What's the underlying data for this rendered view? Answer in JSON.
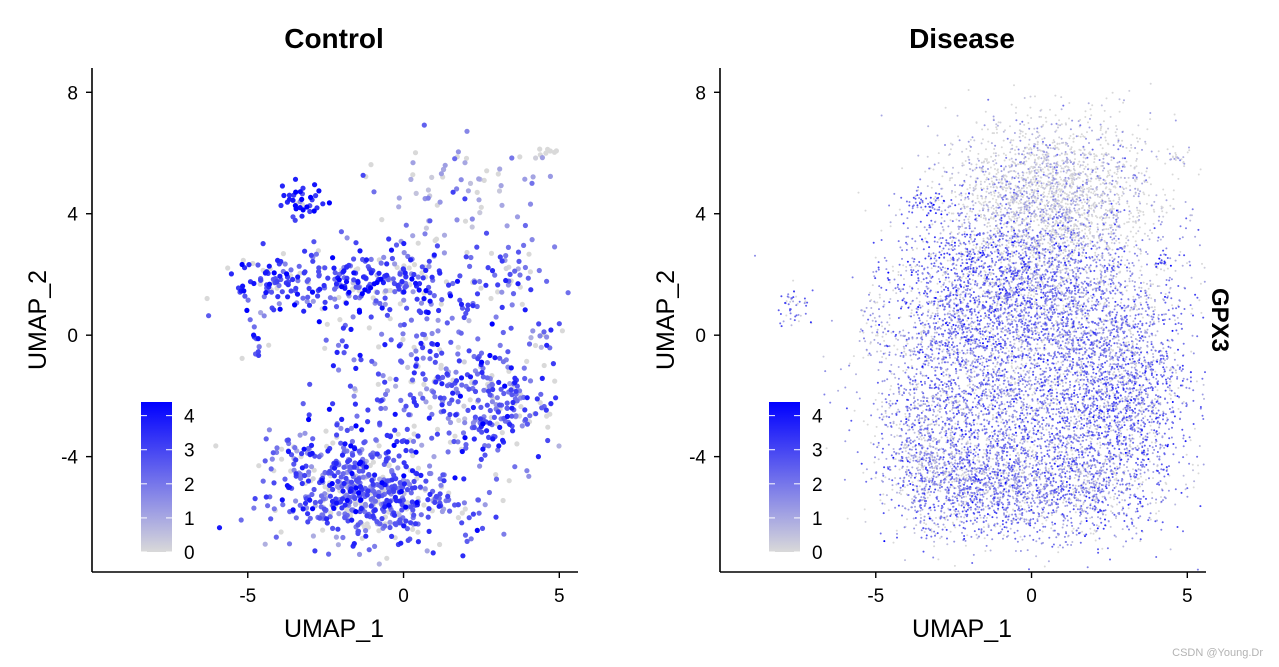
{
  "feature": "GPX3",
  "watermark": "CSDN @Young.Dr",
  "colors": {
    "low": "#d9d9d9",
    "high": "#0000ff",
    "axis": "#000000"
  },
  "chart_data": [
    {
      "type": "scatter",
      "title": "Control",
      "xlabel": "UMAP_1",
      "ylabel": "UMAP_2",
      "xlim": [
        -10,
        5.6
      ],
      "ylim": [
        -7.8,
        8.8
      ],
      "xticks": [
        -5,
        0,
        5
      ],
      "yticks": [
        -4,
        0,
        4,
        8
      ],
      "legend": {
        "title": "",
        "ticks": [
          0,
          1,
          2,
          3,
          4
        ],
        "range": [
          0,
          4.4
        ],
        "placement": "bottom-left"
      },
      "regions": [
        {
          "cx": -1.5,
          "cy": -4.8,
          "sx": 1.3,
          "sy": 1.0,
          "n": 380,
          "mean": 2.6
        },
        {
          "cx": -0.5,
          "cy": -5.6,
          "sx": 1.8,
          "sy": 0.6,
          "n": 260,
          "mean": 2.4
        },
        {
          "cx": 2.8,
          "cy": -2.4,
          "sx": 1.1,
          "sy": 0.9,
          "n": 200,
          "mean": 2.6
        },
        {
          "cx": -1.2,
          "cy": 1.9,
          "sx": 1.7,
          "sy": 0.6,
          "n": 220,
          "mean": 3.0
        },
        {
          "cx": -4.4,
          "cy": 1.7,
          "sx": 0.6,
          "sy": 0.5,
          "n": 60,
          "mean": 3.2
        },
        {
          "cx": 1.2,
          "cy": -1.6,
          "sx": 1.3,
          "sy": 0.7,
          "n": 100,
          "mean": 2.2
        },
        {
          "cx": 3.3,
          "cy": 1.9,
          "sx": 0.6,
          "sy": 0.5,
          "n": 40,
          "mean": 2.4
        },
        {
          "cx": -3.2,
          "cy": 4.5,
          "sx": 0.4,
          "sy": 0.3,
          "n": 35,
          "mean": 3.6
        },
        {
          "cx": 1.5,
          "cy": 4.6,
          "sx": 1.4,
          "sy": 1.0,
          "n": 80,
          "mean": 1.3
        },
        {
          "cx": 0.5,
          "cy": 0.3,
          "sx": 2.2,
          "sy": 1.3,
          "n": 160,
          "mean": 2.6
        },
        {
          "cx": -3.5,
          "cy": -4.0,
          "sx": 0.4,
          "sy": 0.4,
          "n": 30,
          "mean": 2.5
        },
        {
          "cx": -4.7,
          "cy": -0.2,
          "sx": 0.2,
          "sy": 0.3,
          "n": 12,
          "mean": 2.0
        },
        {
          "cx": 4.4,
          "cy": 0.0,
          "sx": 0.2,
          "sy": 0.3,
          "n": 10,
          "mean": 2.8
        },
        {
          "cx": 4.5,
          "cy": 6.0,
          "sx": 0.3,
          "sy": 0.1,
          "n": 10,
          "mean": 0.1
        }
      ]
    },
    {
      "type": "scatter",
      "title": "Disease",
      "xlabel": "UMAP_1",
      "ylabel": "UMAP_2",
      "xlim": [
        -10,
        5.6
      ],
      "ylim": [
        -7.8,
        8.8
      ],
      "xticks": [
        -5,
        0,
        5
      ],
      "yticks": [
        -4,
        0,
        4,
        8
      ],
      "legend": {
        "title": "",
        "ticks": [
          0,
          1,
          2,
          3,
          4
        ],
        "range": [
          0,
          4.4
        ],
        "placement": "bottom-left"
      },
      "regions": [
        {
          "cx": 0.6,
          "cy": 4.5,
          "sx": 1.6,
          "sy": 1.3,
          "n": 2400,
          "mean": 0.25
        },
        {
          "cx": -1.2,
          "cy": 1.7,
          "sx": 1.6,
          "sy": 1.2,
          "n": 1500,
          "mean": 2.0
        },
        {
          "cx": 1.5,
          "cy": 0.8,
          "sx": 1.7,
          "sy": 1.4,
          "n": 1600,
          "mean": 1.4
        },
        {
          "cx": -2.5,
          "cy": -1.0,
          "sx": 1.2,
          "sy": 1.6,
          "n": 900,
          "mean": 1.6
        },
        {
          "cx": 3.0,
          "cy": -1.8,
          "sx": 1.0,
          "sy": 1.4,
          "n": 1000,
          "mean": 1.8
        },
        {
          "cx": 0.0,
          "cy": -2.5,
          "sx": 2.2,
          "sy": 1.5,
          "n": 2000,
          "mean": 1.7
        },
        {
          "cx": -2.0,
          "cy": -5.0,
          "sx": 1.3,
          "sy": 0.9,
          "n": 1100,
          "mean": 1.6
        },
        {
          "cx": 1.5,
          "cy": -5.0,
          "sx": 1.5,
          "sy": 0.9,
          "n": 1100,
          "mean": 1.5
        },
        {
          "cx": -3.6,
          "cy": -3.6,
          "sx": 0.6,
          "sy": 1.0,
          "n": 350,
          "mean": 1.0
        },
        {
          "cx": -3.4,
          "cy": 4.3,
          "sx": 0.35,
          "sy": 0.25,
          "n": 70,
          "mean": 2.4
        },
        {
          "cx": -7.6,
          "cy": 0.9,
          "sx": 0.3,
          "sy": 0.4,
          "n": 50,
          "mean": 2.0
        },
        {
          "cx": -4.9,
          "cy": 0.3,
          "sx": 0.35,
          "sy": 0.7,
          "n": 70,
          "mean": 0.8
        },
        {
          "cx": 4.6,
          "cy": 5.9,
          "sx": 0.3,
          "sy": 0.15,
          "n": 25,
          "mean": 0.3
        },
        {
          "cx": 4.2,
          "cy": 2.4,
          "sx": 0.1,
          "sy": 0.15,
          "n": 15,
          "mean": 3.0
        }
      ]
    }
  ]
}
